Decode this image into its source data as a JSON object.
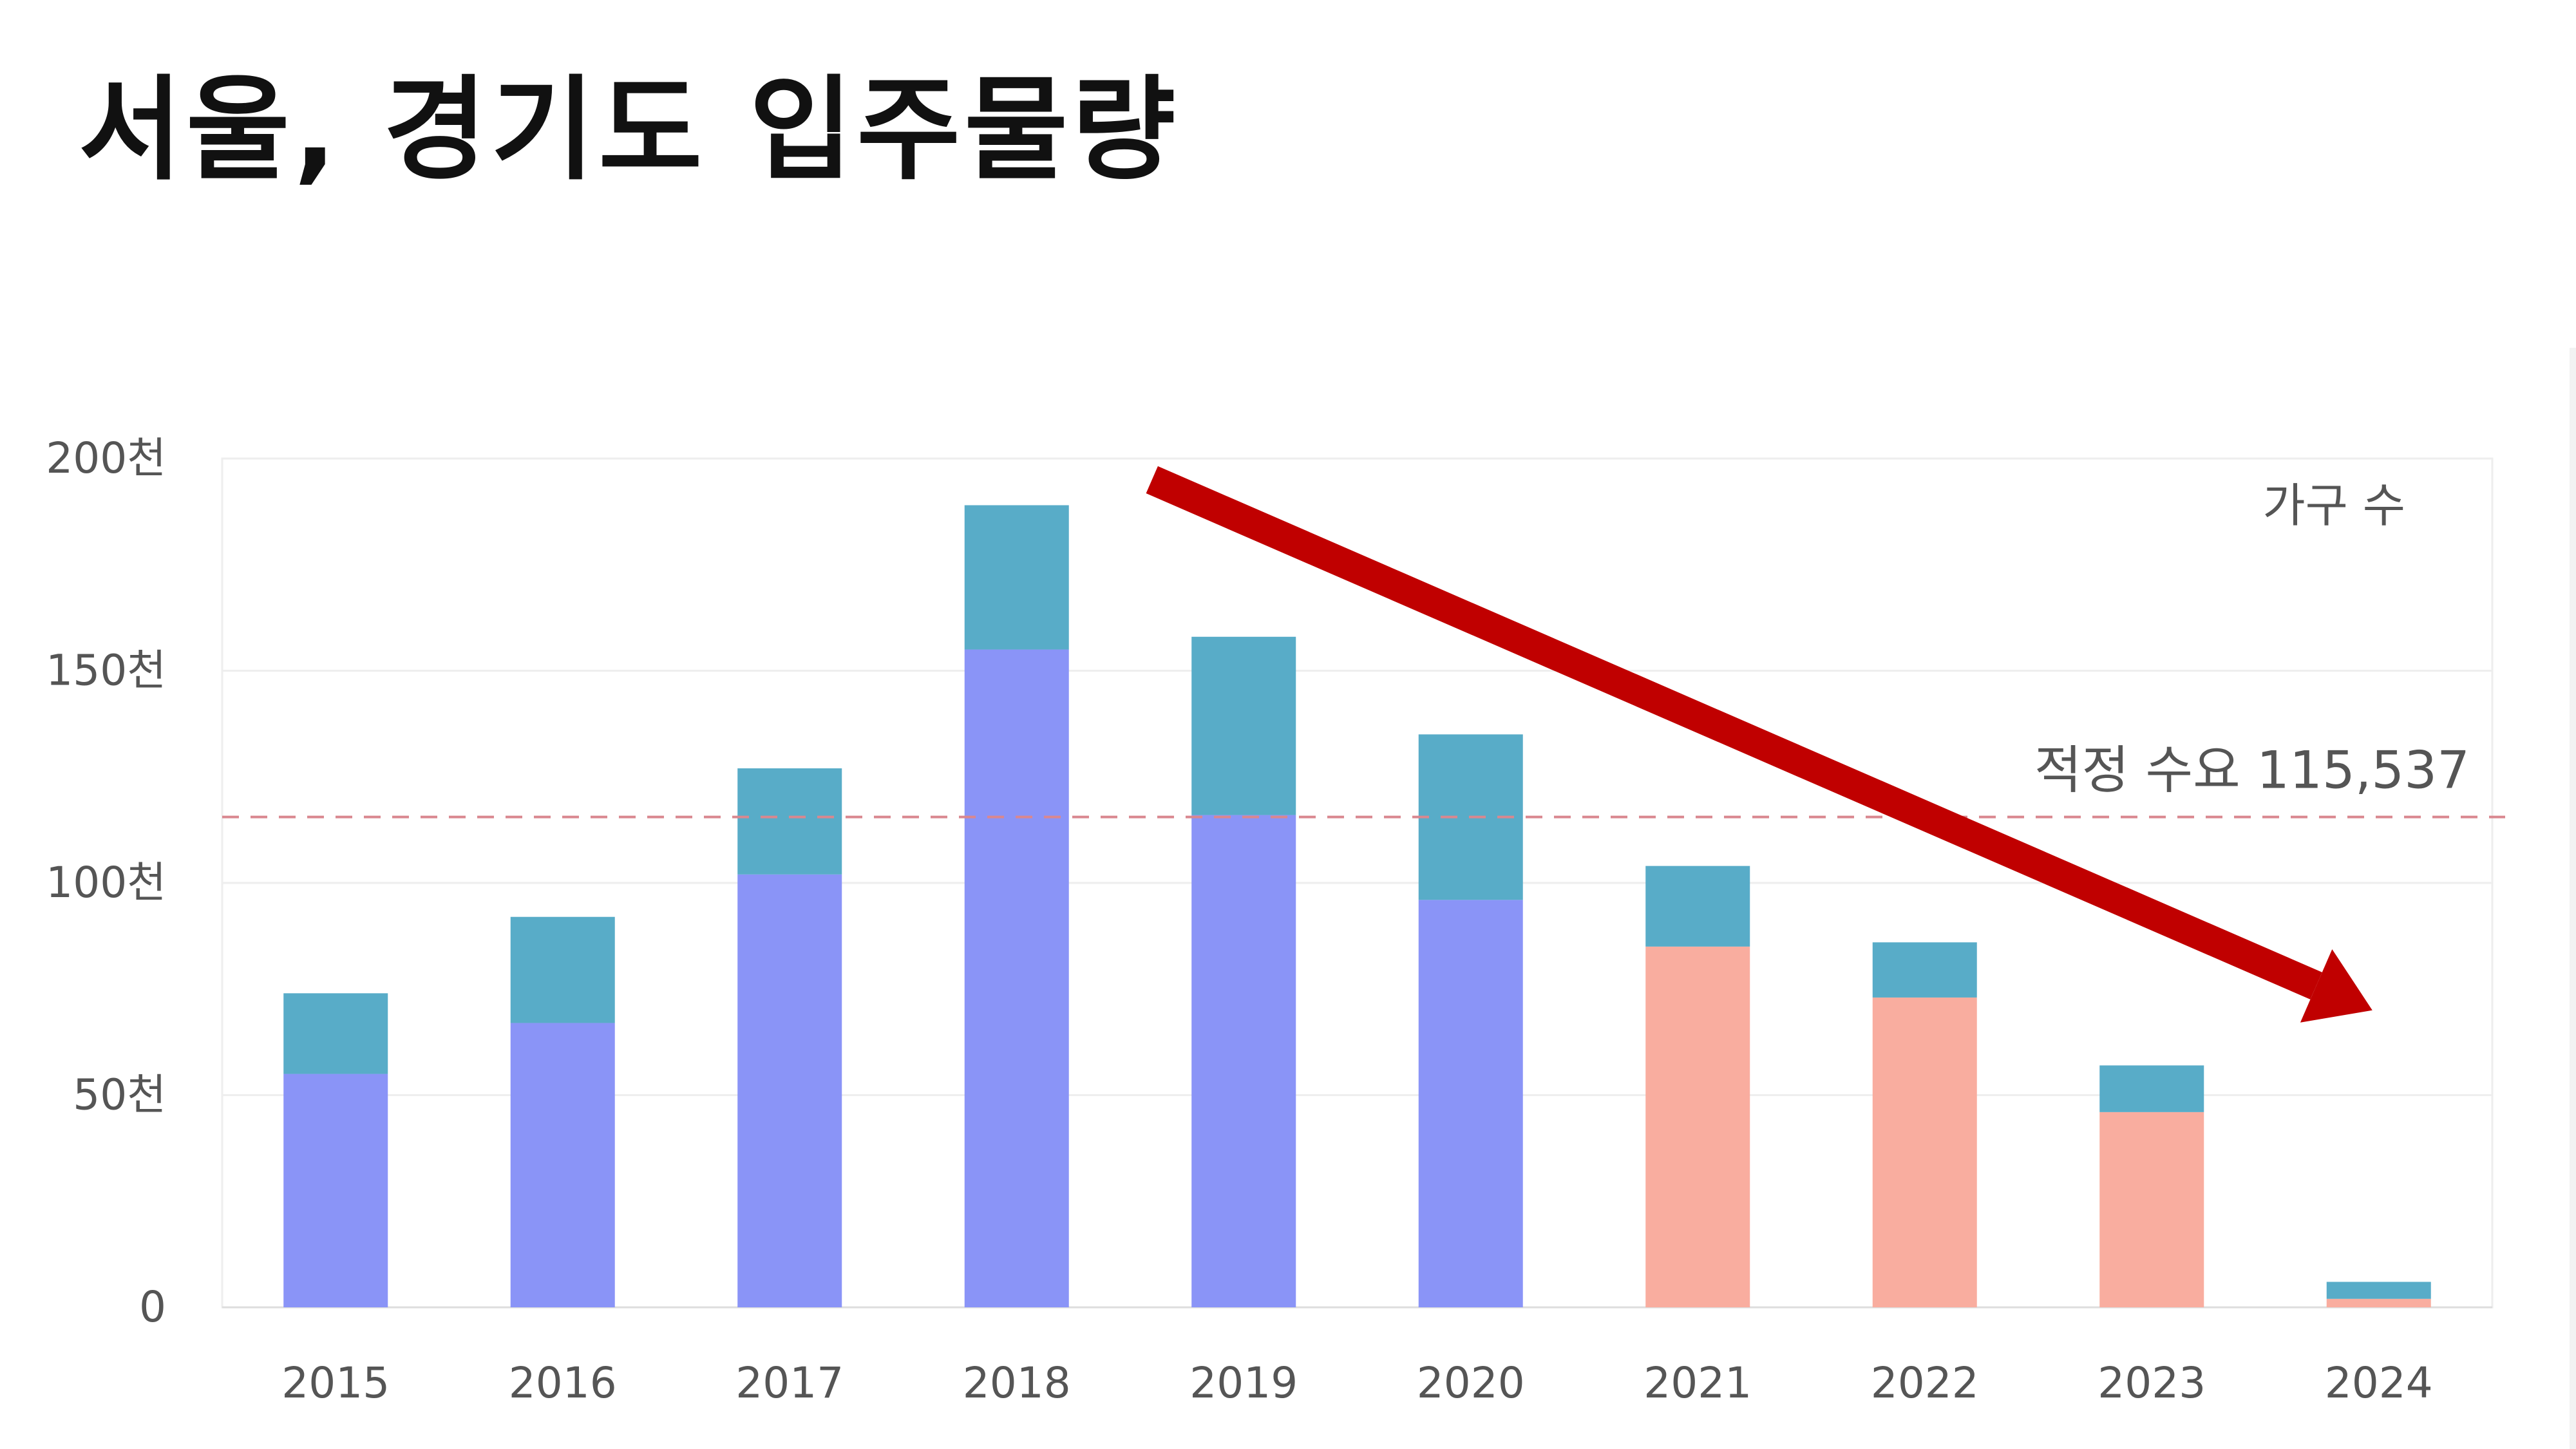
{
  "title": "서울, 경기도 입주물량",
  "chart_data": {
    "type": "bar",
    "stacked": true,
    "title": "서울, 경기도 입주물량",
    "unit_label": "가구 수",
    "categories": [
      "2015",
      "2016",
      "2017",
      "2018",
      "2019",
      "2020",
      "2021",
      "2022",
      "2023",
      "2024"
    ],
    "series": [
      {
        "values": [
          55000,
          67000,
          102000,
          155000,
          116000,
          96000,
          85000,
          73000,
          46000,
          2000
        ],
        "colors": [
          "#8a94f7",
          "#8a94f7",
          "#8a94f7",
          "#8a94f7",
          "#8a94f7",
          "#8a94f7",
          "#f9ad9f",
          "#f9ad9f",
          "#f9ad9f",
          "#f9ad9f"
        ]
      },
      {
        "values": [
          19000,
          25000,
          25000,
          34000,
          42000,
          39000,
          19000,
          13000,
          11000,
          4000
        ],
        "color": "#58acc8"
      }
    ],
    "y_ticks": [
      {
        "value": 0,
        "label": "0"
      },
      {
        "value": 50000,
        "label": "50천"
      },
      {
        "value": 100000,
        "label": "100천"
      },
      {
        "value": 150000,
        "label": "150천"
      },
      {
        "value": 200000,
        "label": "200천"
      }
    ],
    "ylim": [
      0,
      200000
    ],
    "grid": true,
    "reference_line": {
      "value": 115537,
      "label": "적정 수요 115,537",
      "color": "#d9878f"
    },
    "trend_arrow": {
      "from": {
        "x": "2018",
        "y": 195000
      },
      "to": {
        "x": "2024",
        "y": 70000
      },
      "color": "#c00000"
    }
  }
}
